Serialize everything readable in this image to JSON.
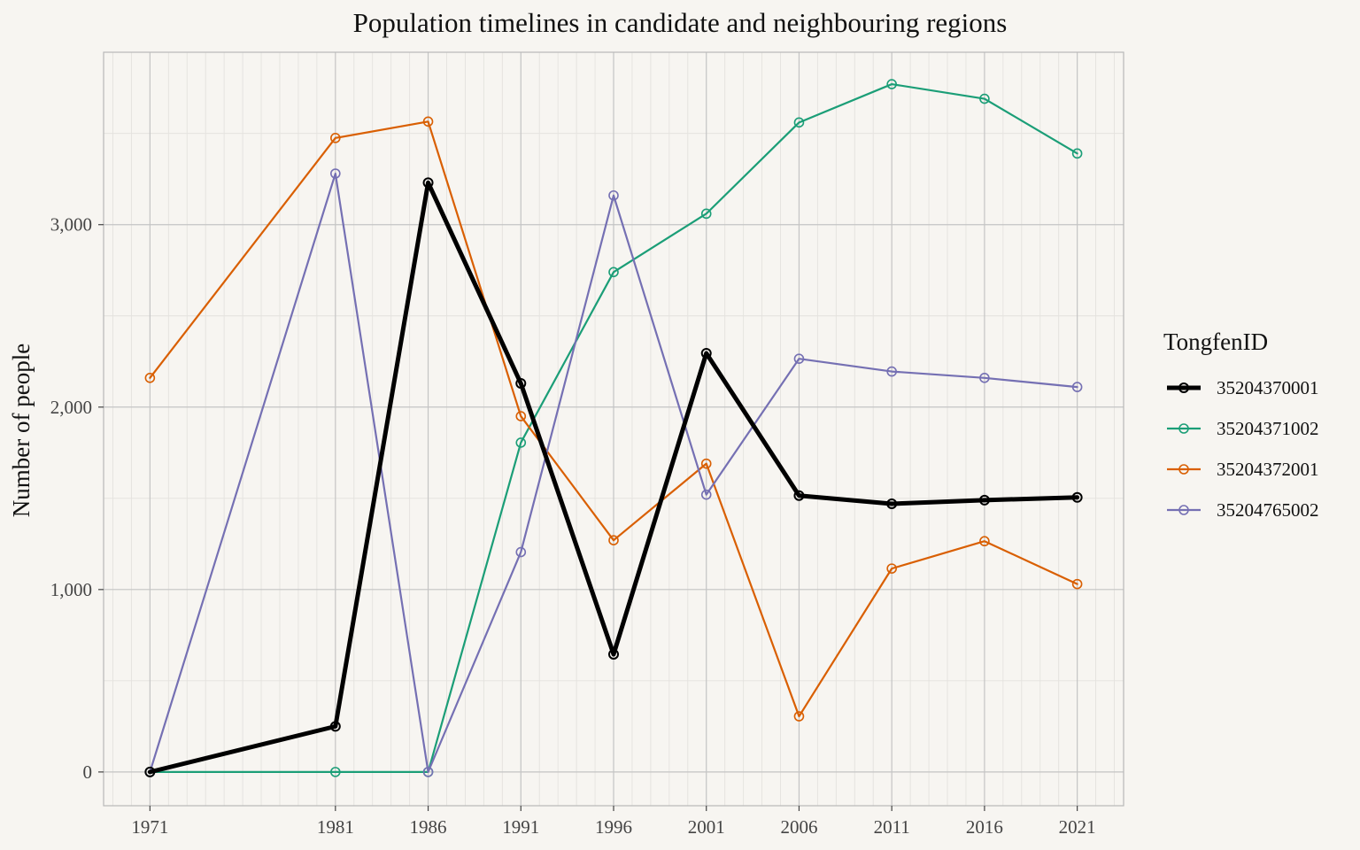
{
  "chart_data": {
    "type": "line",
    "title": "Population timelines in candidate and neighbouring regions",
    "xlabel": "",
    "ylabel": "Number of people",
    "x": [
      1971,
      1981,
      1986,
      1991,
      1996,
      2001,
      2006,
      2011,
      2016,
      2021
    ],
    "x_ticks": [
      "1971",
      "1981",
      "1986",
      "1991",
      "1996",
      "2001",
      "2006",
      "2011",
      "2016",
      "2021"
    ],
    "xlim": [
      1968.5,
      2023.5
    ],
    "ylim": [
      -185,
      3945
    ],
    "y_ticks": [
      0,
      1000,
      2000,
      3000
    ],
    "y_tick_labels": [
      "0",
      "1,000",
      "2,000",
      "3,000"
    ],
    "grid": true,
    "legend": {
      "title": "TongfenID",
      "position": "right"
    },
    "series": [
      {
        "name": "35204370001",
        "color": "#000000",
        "emphasis": true,
        "values": [
          0,
          250,
          3230,
          2130,
          645,
          2295,
          1515,
          1470,
          1490,
          1505
        ]
      },
      {
        "name": "35204371002",
        "color": "#1b9e77",
        "emphasis": false,
        "values": [
          0,
          0,
          0,
          1805,
          2740,
          3060,
          3560,
          3770,
          3690,
          3390
        ]
      },
      {
        "name": "35204372001",
        "color": "#d95f02",
        "emphasis": false,
        "values": [
          2160,
          3475,
          3565,
          1950,
          1270,
          1690,
          305,
          1115,
          1265,
          1030
        ]
      },
      {
        "name": "35204765002",
        "color": "#7570b3",
        "emphasis": false,
        "values": [
          0,
          3280,
          0,
          1205,
          3160,
          1520,
          2265,
          2195,
          2160,
          2110
        ]
      }
    ]
  }
}
